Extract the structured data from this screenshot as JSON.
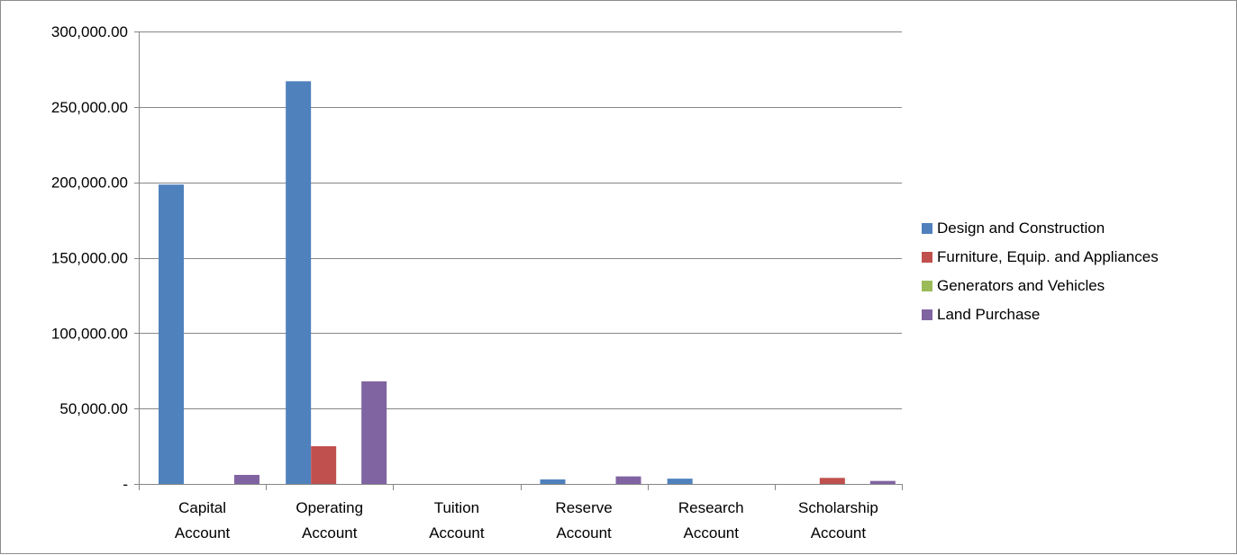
{
  "chart_data": {
    "type": "bar",
    "categories": [
      [
        "Capital",
        "Account"
      ],
      [
        "Operating",
        "Account"
      ],
      [
        "Tuition",
        "Account"
      ],
      [
        "Reserve",
        "Account"
      ],
      [
        "Research",
        "Account"
      ],
      [
        "Scholarship",
        "Account"
      ]
    ],
    "series": [
      {
        "name": "Design and Construction",
        "color": "#4F81BD",
        "values": [
          198500,
          267000,
          0,
          3000,
          3500,
          0
        ]
      },
      {
        "name": "Furniture, Equip. and Appliances",
        "color": "#C0504D",
        "values": [
          0,
          25000,
          0,
          0,
          0,
          4000
        ]
      },
      {
        "name": "Generators and Vehicles",
        "color": "#9BBB59",
        "values": [
          0,
          0,
          0,
          0,
          0,
          0
        ]
      },
      {
        "name": "Land Purchase",
        "color": "#8064A2",
        "values": [
          6000,
          68000,
          0,
          5000,
          0,
          2000
        ]
      }
    ],
    "ylim": [
      0,
      300000
    ],
    "yticks": [
      0,
      50000,
      100000,
      150000,
      200000,
      250000,
      300000
    ],
    "ytick_labels": [
      "-",
      "50,000.00",
      "100,000.00",
      "150,000.00",
      "200,000.00",
      "250,000.00",
      "300,000.00"
    ],
    "grid": true,
    "legend_position": "right",
    "title": "",
    "xlabel": "",
    "ylabel": ""
  }
}
